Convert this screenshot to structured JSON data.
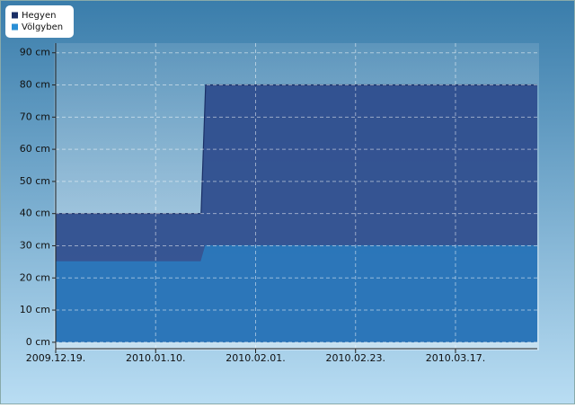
{
  "chart_data": {
    "type": "area",
    "x": [
      "2009.12.19.",
      "2010.01.20.",
      "2010.01.21.",
      "2010.04.04."
    ],
    "series": [
      {
        "name": "Hegyen",
        "color": "#2c4b8c",
        "values": [
          40,
          40,
          80,
          80
        ]
      },
      {
        "name": "Völgyben",
        "color": "#2b78bb",
        "values": [
          25,
          25,
          30,
          30
        ]
      }
    ],
    "xlim": [
      "2009.12.19.",
      "2010.04.04."
    ],
    "xticks": [
      "2009.12.19.",
      "2010.01.10.",
      "2010.02.01.",
      "2010.02.23.",
      "2010.03.17."
    ],
    "ylim": [
      -2,
      93
    ],
    "yticks": [
      {
        "value": 0,
        "label": "0 cm"
      },
      {
        "value": 10,
        "label": "10 cm"
      },
      {
        "value": 20,
        "label": "20 cm"
      },
      {
        "value": 30,
        "label": "30 cm"
      },
      {
        "value": 40,
        "label": "40 cm"
      },
      {
        "value": 50,
        "label": "50 cm"
      },
      {
        "value": 60,
        "label": "60 cm"
      },
      {
        "value": 70,
        "label": "70 cm"
      },
      {
        "value": 80,
        "label": "80 cm"
      },
      {
        "value": 90,
        "label": "90 cm"
      }
    ],
    "grid": true,
    "legend": "top-left"
  }
}
